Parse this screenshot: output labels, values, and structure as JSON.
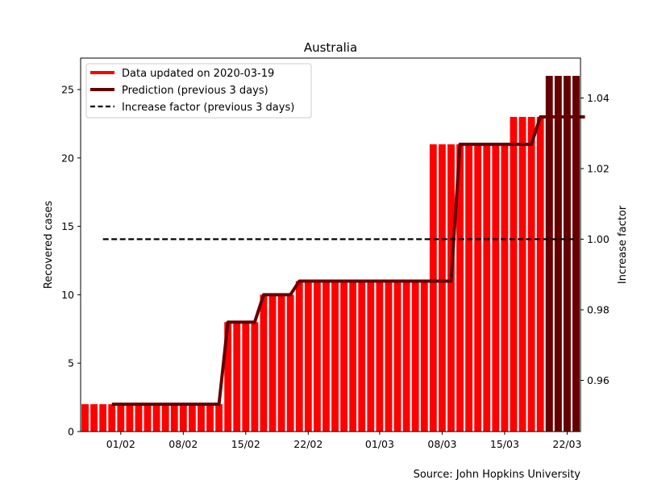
{
  "chart_data": {
    "type": "bar",
    "title": "Australia",
    "ylabel": "Recovered cases",
    "y2label": "Increase factor",
    "source": "Source: John Hopkins University",
    "ylim": [
      0,
      27.3
    ],
    "y2lim": [
      0.9455,
      1.0513
    ],
    "yticks": [
      0,
      5,
      10,
      15,
      20,
      25
    ],
    "y2ticks": [
      0.96,
      0.98,
      1.0,
      1.02,
      1.04
    ],
    "y2tick_labels": [
      "0.96",
      "0.98",
      "1.00",
      "1.02",
      "1.04"
    ],
    "x_start": "2020-01-28",
    "xticks": [
      "2020-02-01",
      "2020-02-08",
      "2020-02-15",
      "2020-02-22",
      "2020-03-01",
      "2020-03-08",
      "2020-03-15",
      "2020-03-22"
    ],
    "xtick_labels": [
      "01/02",
      "08/02",
      "15/02",
      "22/02",
      "01/03",
      "08/03",
      "15/03",
      "22/03"
    ],
    "xlim": [
      "2020-01-27T12:00",
      "2020-03-23T12:00"
    ],
    "legend_position": "top-left",
    "colors": {
      "data": "#ff0000",
      "prediction": "#660000",
      "factor": "#000000"
    },
    "series": [
      {
        "name": "Data updated on 2020-03-19",
        "kind": "bar",
        "color": "#ff0000",
        "values": [
          2,
          2,
          2,
          2,
          2,
          2,
          2,
          2,
          2,
          2,
          2,
          2,
          2,
          2,
          2,
          2,
          8,
          8,
          8,
          8,
          10,
          10,
          10,
          10,
          11,
          11,
          11,
          11,
          11,
          11,
          11,
          11,
          11,
          11,
          11,
          11,
          11,
          11,
          11,
          21,
          21,
          21,
          21,
          21,
          21,
          21,
          21,
          21,
          23,
          23,
          23,
          23,
          23,
          23,
          23,
          23
        ]
      },
      {
        "name": "Prediction (previous 3 days)",
        "kind": "bar+line",
        "color": "#660000",
        "bar_dates": [
          "2020-03-20",
          "2020-03-21",
          "2020-03-22",
          "2020-03-23"
        ],
        "bar_values": [
          26,
          26,
          26,
          26
        ],
        "line_values": [
          2,
          2,
          2,
          2,
          2,
          2,
          2,
          2,
          2,
          2,
          2,
          2,
          2,
          8,
          8,
          8,
          8,
          10,
          10,
          10,
          10,
          11,
          11,
          11,
          11,
          11,
          11,
          11,
          11,
          11,
          11,
          11,
          11,
          11,
          11,
          11,
          11,
          11,
          11,
          21,
          21,
          21,
          21,
          21,
          21,
          21,
          21,
          21,
          23,
          23,
          23,
          23,
          23,
          23
        ]
      },
      {
        "name": "Increase factor (previous 3 days)",
        "kind": "line",
        "color": "#000000",
        "values": [
          1.0,
          1.0
        ]
      }
    ]
  }
}
